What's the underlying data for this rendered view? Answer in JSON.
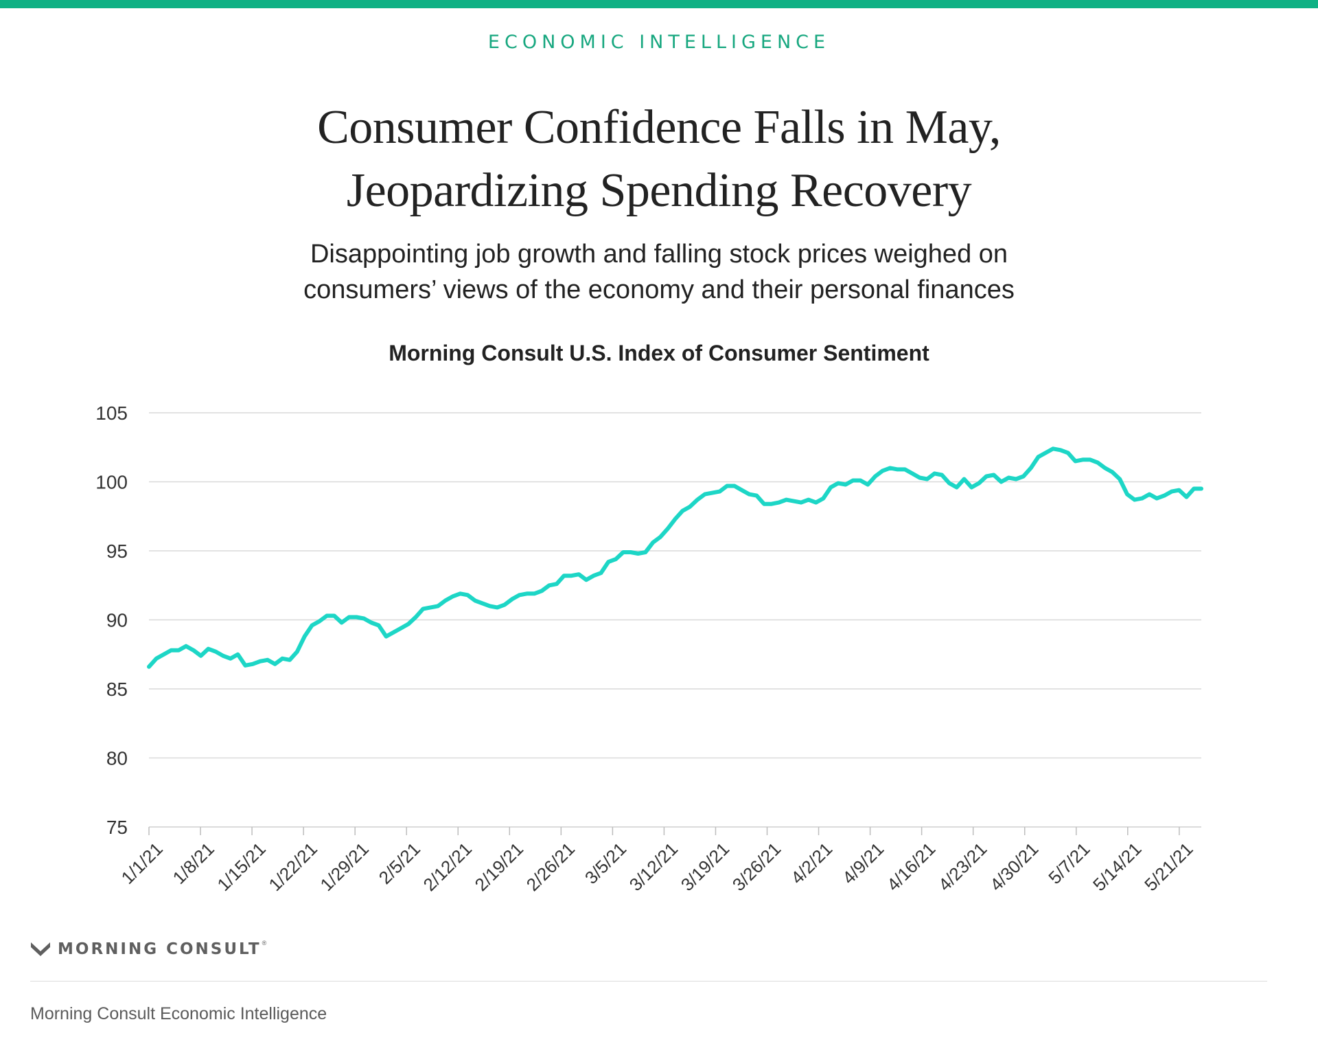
{
  "header": {
    "kicker": "ECONOMIC INTELLIGENCE",
    "title_line1": "Consumer Confidence Falls in May,",
    "title_line2": "Jeopardizing Spending Recovery",
    "subtitle_line1": "Disappointing job growth and falling stock prices weighed on",
    "subtitle_line2": "consumers’ views of the economy and their personal finances"
  },
  "brand": {
    "logo_text": "MORNING CONSULT",
    "logo_mark": "®",
    "logo_icon": "morning-consult-m-icon"
  },
  "footer": {
    "source": "Morning Consult Economic Intelligence"
  },
  "colors": {
    "accent_bar": "#0fb184",
    "kicker": "#17a77f",
    "series_line": "#1dd6c6",
    "grid": "#d9d9d9",
    "text": "#222222"
  },
  "chart_data": {
    "type": "line",
    "title": "Morning Consult U.S. Index of Consumer Sentiment",
    "xlabel": "",
    "ylabel": "",
    "ylim": [
      75,
      105
    ],
    "yticks": [
      105,
      100,
      95,
      90,
      85,
      80,
      75
    ],
    "ytick_labels": [
      "105",
      "100",
      "95",
      "90",
      "85",
      "80",
      "75"
    ],
    "x_start": "1/1/21",
    "x_end": "5/24/21",
    "xtick_labels": [
      "1/1/21",
      "1/8/21",
      "1/15/21",
      "1/22/21",
      "1/29/21",
      "2/5/21",
      "2/12/21",
      "2/19/21",
      "2/26/21",
      "3/5/21",
      "3/12/21",
      "3/19/21",
      "3/26/21",
      "4/2/21",
      "4/9/21",
      "4/16/21",
      "4/23/21",
      "4/30/21",
      "5/7/21",
      "5/14/21",
      "5/21/21"
    ],
    "grid": true,
    "legend": "none",
    "series": [
      {
        "values": [
          86.6,
          87.2,
          87.5,
          87.8,
          87.8,
          88.1,
          87.8,
          87.4,
          87.9,
          87.7,
          87.4,
          87.2,
          87.5,
          86.7,
          86.8,
          87.0,
          87.1,
          86.8,
          87.2,
          87.1,
          87.7,
          88.8,
          89.6,
          89.9,
          90.3,
          90.3,
          89.8,
          90.2,
          90.2,
          90.1,
          89.8,
          89.6,
          88.8,
          89.1,
          89.4,
          89.7,
          90.2,
          90.8,
          90.9,
          91.0,
          91.4,
          91.7,
          91.9,
          91.8,
          91.4,
          91.2,
          91.0,
          90.9,
          91.1,
          91.5,
          91.8,
          91.9,
          91.9,
          92.1,
          92.5,
          92.6,
          93.2,
          93.2,
          93.3,
          92.9,
          93.2,
          93.4,
          94.2,
          94.4,
          94.9,
          94.9,
          94.8,
          94.9,
          95.6,
          96.0,
          96.6,
          97.3,
          97.9,
          98.2,
          98.7,
          99.1,
          99.2,
          99.3,
          99.7,
          99.7,
          99.4,
          99.1,
          99.0,
          98.4,
          98.4,
          98.5,
          98.7,
          98.6,
          98.5,
          98.7,
          98.5,
          98.8,
          99.6,
          99.9,
          99.8,
          100.1,
          100.1,
          99.8,
          100.4,
          100.8,
          101.0,
          100.9,
          100.9,
          100.6,
          100.3,
          100.2,
          100.6,
          100.5,
          99.9,
          99.6,
          100.2,
          99.6,
          99.9,
          100.4,
          100.5,
          100.0,
          100.3,
          100.2,
          100.4,
          101.0,
          101.8,
          102.1,
          102.4,
          102.3,
          102.1,
          101.5,
          101.6,
          101.6,
          101.4,
          101.0,
          100.7,
          100.2,
          99.1,
          98.7,
          98.8,
          99.1,
          98.8,
          99.0,
          99.3,
          99.4,
          98.9,
          99.5,
          99.5
        ]
      }
    ]
  }
}
